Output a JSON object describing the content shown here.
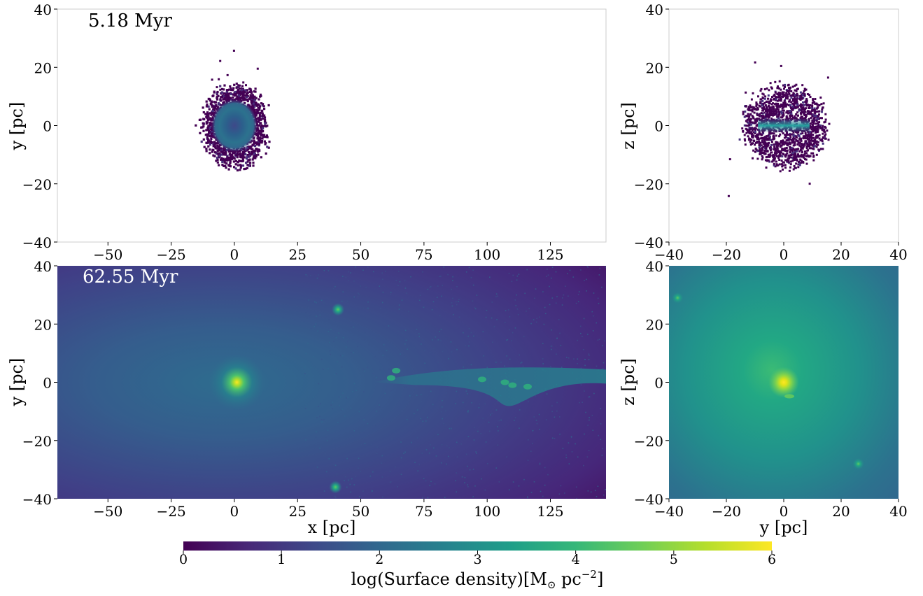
{
  "colorbar": {
    "label_prefix": "log(Surface density)[M",
    "label_sub": "⊙",
    "label_unit": " pc",
    "label_sup": "−2",
    "label_suffix": "]",
    "range": [
      0,
      6
    ],
    "ticks": [
      "0",
      "1",
      "2",
      "3",
      "4",
      "5",
      "6"
    ],
    "colormap": "viridis",
    "colors": [
      "#440154",
      "#482878",
      "#3e4989",
      "#31688e",
      "#26828e",
      "#1f9e89",
      "#35b779",
      "#6ece58",
      "#b5de2b",
      "#fde725"
    ]
  },
  "chart_data": [
    {
      "type": "heatmap",
      "id": "top-left",
      "annotation": "5.18 Myr",
      "xlabel": "",
      "ylabel": "y [pc]",
      "xlim": [
        -70,
        147
      ],
      "ylim": [
        -40,
        40
      ],
      "xticks": [
        "−50",
        "−25",
        "0",
        "25",
        "50",
        "75",
        "100",
        "125"
      ],
      "xtick_values": [
        -50,
        -25,
        0,
        25,
        50,
        75,
        100,
        125
      ],
      "yticks": [
        "−40",
        "−20",
        "0",
        "20",
        "40"
      ],
      "ytick_values": [
        -40,
        -20,
        0,
        20,
        40
      ],
      "features": [
        {
          "kind": "cluster",
          "x": 0,
          "y": 0,
          "radius_pc": 13,
          "peak_log_density": 2.0
        }
      ],
      "background": "white"
    },
    {
      "type": "heatmap",
      "id": "top-right",
      "annotation": "",
      "xlabel": "",
      "ylabel": "z [pc]",
      "xlim": [
        -40,
        40
      ],
      "ylim": [
        -40,
        40
      ],
      "xticks": [
        "−40",
        "−20",
        "0",
        "20",
        "40"
      ],
      "xtick_values": [
        -40,
        -20,
        0,
        20,
        40
      ],
      "yticks": [
        "−40",
        "−20",
        "0",
        "20",
        "40"
      ],
      "ytick_values": [
        -40,
        -20,
        0,
        20,
        40
      ],
      "features": [
        {
          "kind": "cluster-edge-on",
          "x": 0,
          "y": 0,
          "radius_pc": 13,
          "peak_log_density": 2.5
        }
      ],
      "background": "white"
    },
    {
      "type": "heatmap",
      "id": "bottom-left",
      "annotation": "62.55 Myr",
      "xlabel": "x [pc]",
      "ylabel": "y [pc]",
      "xlim": [
        -70,
        147
      ],
      "ylim": [
        -40,
        40
      ],
      "xticks": [
        "−50",
        "−25",
        "0",
        "25",
        "50",
        "75",
        "100",
        "125"
      ],
      "xtick_values": [
        -50,
        -25,
        0,
        25,
        50,
        75,
        100,
        125
      ],
      "yticks": [
        "−40",
        "−20",
        "0",
        "20",
        "40"
      ],
      "ytick_values": [
        -40,
        -20,
        0,
        20,
        40
      ],
      "features": [
        {
          "kind": "core",
          "x": 1,
          "y": 0,
          "peak_log_density": 5.0
        },
        {
          "kind": "clump",
          "x": 41,
          "y": 25,
          "peak_log_density": 3.3
        },
        {
          "kind": "clump",
          "x": 40,
          "y": -36,
          "peak_log_density": 3.3
        },
        {
          "kind": "tidal-tail",
          "x_range": [
            55,
            147
          ],
          "y": 1,
          "peak_log_density": 3.0
        }
      ],
      "background_log_density": [
        0.4,
        2.0
      ]
    },
    {
      "type": "heatmap",
      "id": "bottom-right",
      "annotation": "",
      "xlabel": "y [pc]",
      "ylabel": "z [pc]",
      "xlim": [
        -40,
        40
      ],
      "ylim": [
        -40,
        40
      ],
      "xticks": [
        "−40",
        "−20",
        "0",
        "20",
        "40"
      ],
      "xtick_values": [
        -40,
        -20,
        0,
        20,
        40
      ],
      "yticks": [
        "−40",
        "−20",
        "0",
        "20",
        "40"
      ],
      "ytick_values": [
        -40,
        -20,
        0,
        20,
        40
      ],
      "features": [
        {
          "kind": "core",
          "x": 0,
          "y": 0,
          "peak_log_density": 5.8
        },
        {
          "kind": "clump",
          "x": -37,
          "y": 29,
          "peak_log_density": 3.5
        },
        {
          "kind": "clump",
          "x": 26,
          "y": -28,
          "peak_log_density": 3.5
        }
      ],
      "background_log_density": [
        1.6,
        2.6
      ]
    }
  ]
}
